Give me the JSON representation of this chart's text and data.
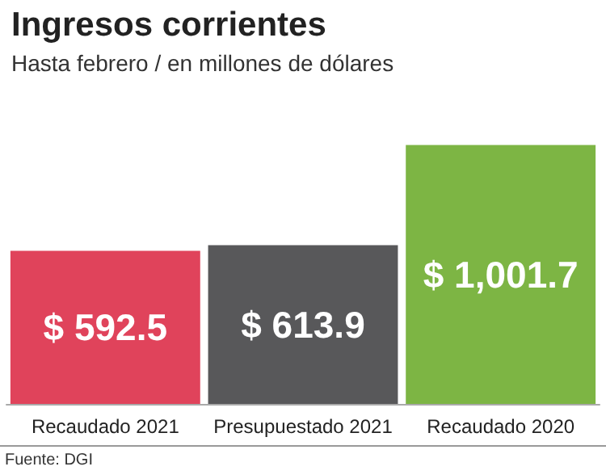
{
  "chart_data": {
    "type": "bar",
    "title": "Ingresos corrientes",
    "subtitle": "Hasta febrero / en millones de dólares",
    "categories": [
      "Recaudado 2021",
      "Presupuestado 2021",
      "Recaudado 2020"
    ],
    "values": [
      592.5,
      613.9,
      1001.7
    ],
    "colors": [
      "#e0435b",
      "#58585a",
      "#7db544"
    ],
    "value_labels": [
      "$ 592.5",
      "$ 613.9",
      "$ 1,001.7"
    ],
    "annotations": [
      "Fuente: DGI"
    ]
  }
}
